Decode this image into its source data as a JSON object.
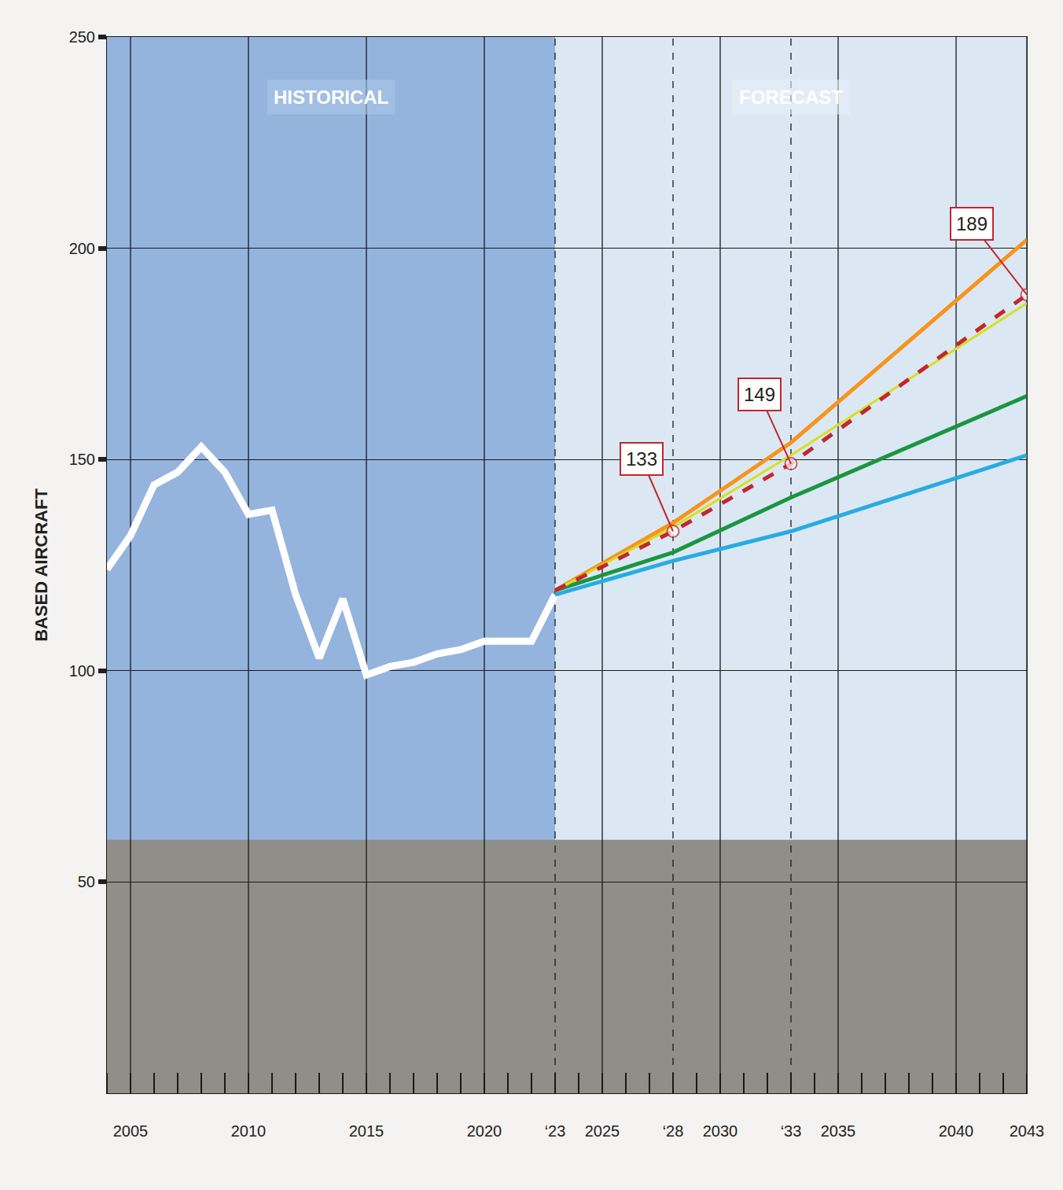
{
  "chart_data": {
    "type": "line",
    "y_label": "BASED AIRCRAFT",
    "annotations": [
      "HISTORICAL",
      "FORECAST"
    ],
    "xlim": [
      2004,
      2043
    ],
    "xticks": [
      2005,
      2010,
      2015,
      2020,
      {
        "value": 2023,
        "label": "‘23"
      },
      2025,
      {
        "value": 2028,
        "label": "‘28"
      },
      2030,
      {
        "value": 2033,
        "label": "‘33"
      },
      2035,
      2040,
      2043
    ],
    "ylim": [
      0,
      250
    ],
    "yticks": [
      50,
      100,
      150,
      200,
      250
    ],
    "grid": true,
    "series": [
      {
        "color": "#ffffff",
        "line_style": "solid",
        "x": [
          2004,
          2005,
          2006,
          2007,
          2008,
          2009,
          2010,
          2011,
          2012,
          2013,
          2014,
          2015,
          2016,
          2017,
          2018,
          2019,
          2020,
          2021,
          2022,
          2023
        ],
        "values": [
          124,
          132,
          144,
          147,
          153,
          147,
          137,
          138,
          118,
          103,
          117,
          99,
          101,
          102,
          104,
          105,
          107,
          107,
          107,
          118
        ]
      },
      {
        "color": "#29abe2",
        "line_style": "solid",
        "x": [
          2023,
          2028,
          2033,
          2043
        ],
        "values": [
          118,
          126,
          133,
          151
        ]
      },
      {
        "color": "#1a9641",
        "line_style": "solid",
        "x": [
          2023,
          2028,
          2033,
          2043
        ],
        "values": [
          119,
          128,
          141,
          165
        ]
      },
      {
        "color": "#f7941d",
        "line_style": "solid",
        "x": [
          2023,
          2028,
          2033,
          2043
        ],
        "values": [
          119,
          135,
          154,
          202
        ]
      },
      {
        "color": "#d7df23",
        "line_style": "solid",
        "x": [
          2023,
          2028,
          2033,
          2043
        ],
        "values": [
          119,
          134,
          151,
          187
        ]
      },
      {
        "color": "#c1272d",
        "line_style": "dash",
        "marker": "circle",
        "x": [
          2023,
          2028,
          2033,
          2043
        ],
        "values": [
          119,
          133,
          149,
          189
        ],
        "value_labels": [
          null,
          "133",
          "149",
          "189"
        ]
      }
    ]
  }
}
